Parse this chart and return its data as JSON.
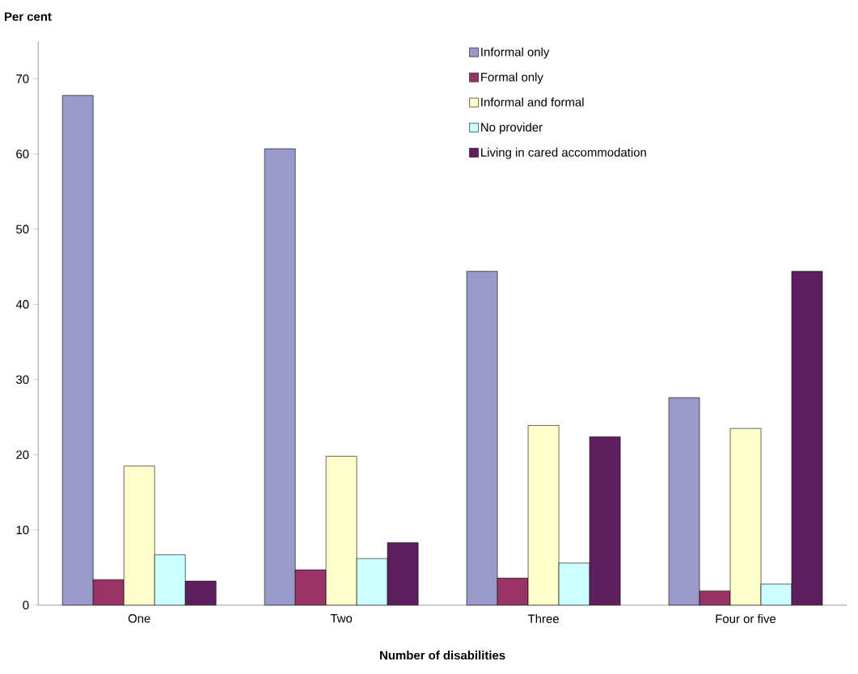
{
  "chart_data": {
    "type": "bar",
    "xlabel": "Number of disabilities",
    "ylabel": "Per cent",
    "categories": [
      "One",
      "Two",
      "Three",
      "Four or five"
    ],
    "series": [
      {
        "name": "Informal only",
        "color": "#9999cc",
        "values": [
          67.8,
          60.7,
          44.4,
          27.6
        ]
      },
      {
        "name": "Formal only",
        "color": "#993366",
        "values": [
          3.4,
          4.7,
          3.6,
          1.9
        ]
      },
      {
        "name": "Informal and formal",
        "color": "#ffffcc",
        "values": [
          18.5,
          19.8,
          23.9,
          23.5
        ]
      },
      {
        "name": "No provider",
        "color": "#ccffff",
        "values": [
          6.7,
          6.2,
          5.6,
          2.8
        ]
      },
      {
        "name": "Living in cared accommodation",
        "color": "#5f1f5f",
        "values": [
          3.2,
          8.3,
          22.4,
          44.4
        ]
      }
    ],
    "ylim": [
      0,
      75
    ],
    "yticks": [
      0,
      10,
      20,
      30,
      40,
      50,
      60,
      70
    ],
    "legend": "top right"
  }
}
